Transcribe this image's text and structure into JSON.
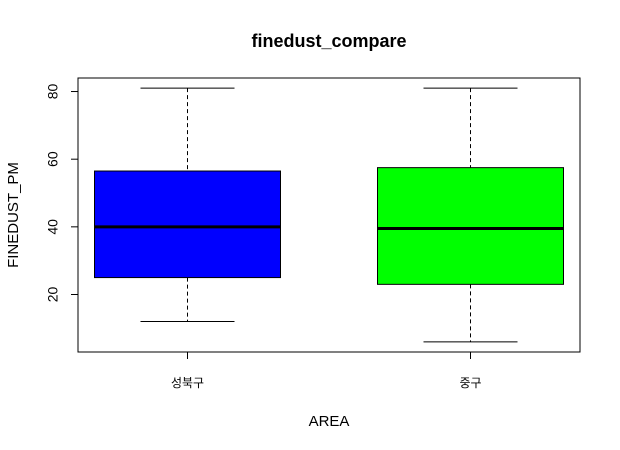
{
  "chart_data": {
    "type": "boxplot",
    "title": "finedust_compare",
    "xlabel": "AREA",
    "ylabel": "FINEDUST_PM",
    "ylim": [
      3,
      84
    ],
    "yticks": [
      20,
      40,
      60,
      80
    ],
    "grid": false,
    "series": [
      {
        "category": "성북구",
        "color": "#0000ff",
        "min": 12,
        "q1": 25,
        "median": 40,
        "q3": 56.5,
        "max": 81
      },
      {
        "category": "중구",
        "color": "#00ff00",
        "min": 6,
        "q1": 23,
        "median": 39.5,
        "q3": 57.5,
        "max": 81
      }
    ]
  }
}
